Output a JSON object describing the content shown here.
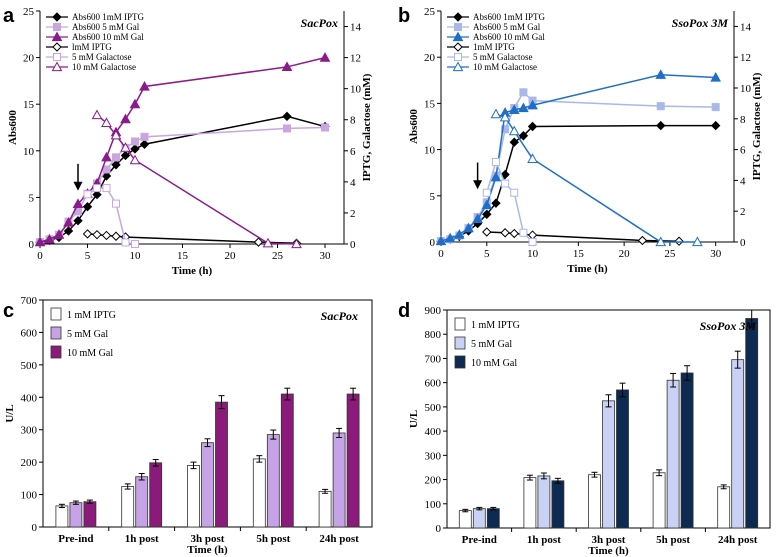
{
  "panels": {
    "a": {
      "letter": "a"
    },
    "b": {
      "letter": "b"
    },
    "c": {
      "letter": "c"
    },
    "d": {
      "letter": "d"
    }
  },
  "chart_data": [
    {
      "panel": "a",
      "type": "line",
      "title": "SacPox",
      "xlabel": "Time (h)",
      "ylabel": "Abs600",
      "ylabel2": "IPTG, Galactose (mM)",
      "xlim": [
        0,
        32
      ],
      "ylim": [
        0,
        25
      ],
      "ylim2": [
        0,
        15
      ],
      "xticks": [
        0,
        5,
        10,
        15,
        20,
        25,
        30
      ],
      "yticks": [
        0,
        5,
        10,
        15,
        20,
        25
      ],
      "yticks2": [
        0,
        2,
        4,
        6,
        8,
        10,
        12,
        14
      ],
      "induction_time": 4,
      "series": [
        {
          "name": "Abs600 1mM IPTG",
          "axis": "left",
          "marker": "diamond",
          "fill": "filled",
          "color": "#000000",
          "x": [
            0,
            1,
            2,
            3,
            4,
            5,
            6,
            7,
            8,
            9,
            10,
            11,
            26,
            30
          ],
          "y": [
            0.2,
            0.4,
            0.7,
            1.4,
            2.5,
            4.0,
            5.3,
            7.3,
            8.5,
            9.5,
            10.2,
            10.7,
            13.7,
            12.6
          ]
        },
        {
          "name": "Abs600 5 mM Gal",
          "axis": "left",
          "marker": "square",
          "fill": "filled",
          "color": "#c9a6e0",
          "x": [
            0,
            1,
            2,
            3,
            4,
            5,
            6,
            7,
            8,
            9,
            10,
            11,
            26,
            30
          ],
          "y": [
            0.2,
            0.5,
            1.0,
            2.4,
            3.5,
            5.4,
            6.5,
            8.0,
            9.3,
            10.3,
            11.0,
            11.5,
            12.4,
            12.5
          ]
        },
        {
          "name": "Abs600 10 mM Gal",
          "axis": "left",
          "marker": "triangle",
          "fill": "filled",
          "color": "#8b1a8b",
          "x": [
            0,
            1,
            2,
            3,
            4,
            5,
            6,
            7,
            8,
            9,
            10,
            11,
            26,
            30
          ],
          "y": [
            0.2,
            0.5,
            1.0,
            2.3,
            4.3,
            5.4,
            6.5,
            9.3,
            12.0,
            13.4,
            15.0,
            16.9,
            19.0,
            20.0
          ]
        },
        {
          "name": "lmM IPTG",
          "axis": "right",
          "marker": "diamond",
          "fill": "open",
          "color": "#000000",
          "x": [
            5,
            6,
            7,
            8,
            9,
            23,
            27
          ],
          "y": [
            0.65,
            0.6,
            0.55,
            0.5,
            0.45,
            0.12,
            0.05
          ]
        },
        {
          "name": "5 mM Galactose",
          "axis": "right",
          "marker": "square",
          "fill": "open",
          "color": "#c9a6e0",
          "x": [
            5,
            6,
            7,
            8,
            9,
            10
          ],
          "y": [
            3.2,
            3.6,
            3.6,
            2.6,
            0.1,
            0.0
          ]
        },
        {
          "name": "10 mM Galactose",
          "axis": "right",
          "marker": "triangle",
          "fill": "open",
          "color": "#8b1a8b",
          "x": [
            6,
            7,
            8,
            9,
            10,
            24,
            27
          ],
          "y": [
            8.3,
            7.8,
            7.0,
            6.2,
            5.4,
            0.05,
            0.0
          ]
        }
      ]
    },
    {
      "panel": "b",
      "type": "line",
      "title": "SsoPox 3M",
      "xlabel": "Time (h)",
      "ylabel": "Abs600",
      "ylabel2": "IPTG, Galactose (mM)",
      "xlim": [
        0,
        32
      ],
      "ylim": [
        0,
        25
      ],
      "ylim2": [
        0,
        15
      ],
      "xticks": [
        0,
        5,
        10,
        15,
        20,
        25,
        30
      ],
      "yticks": [
        0,
        5,
        10,
        15,
        20,
        25
      ],
      "yticks2": [
        0,
        2,
        4,
        6,
        8,
        10,
        12,
        14
      ],
      "induction_time": 4,
      "series": [
        {
          "name": "Abs600 1mM IPTG",
          "axis": "left",
          "marker": "diamond",
          "fill": "filled",
          "color": "#000000",
          "x": [
            0,
            1,
            2,
            3,
            4,
            5,
            6,
            7,
            8,
            9,
            10,
            24,
            30
          ],
          "y": [
            0.1,
            0.3,
            0.6,
            1.2,
            2.0,
            3.0,
            4.2,
            7.3,
            10.8,
            11.5,
            12.5,
            12.6,
            12.6
          ]
        },
        {
          "name": "Abs600 5 mM Gal",
          "axis": "left",
          "marker": "square",
          "fill": "filled",
          "color": "#a9b8e8",
          "x": [
            0,
            1,
            2,
            3,
            4,
            5,
            6,
            7,
            8,
            9,
            10,
            24,
            30
          ],
          "y": [
            0.1,
            0.3,
            0.7,
            1.5,
            2.7,
            4.3,
            7.2,
            12.2,
            14.5,
            16.2,
            15.3,
            14.7,
            14.6
          ]
        },
        {
          "name": "Abs600 10 mM Gal",
          "axis": "left",
          "marker": "triangle",
          "fill": "filled",
          "color": "#1f6fc9",
          "x": [
            0,
            1,
            2,
            3,
            4,
            5,
            6,
            7,
            8,
            9,
            10,
            24,
            30
          ],
          "y": [
            0.1,
            0.4,
            0.8,
            1.5,
            2.5,
            4.0,
            7.0,
            14.0,
            14.3,
            14.5,
            14.8,
            18.1,
            17.8
          ]
        },
        {
          "name": "1mM IPTG",
          "axis": "right",
          "marker": "diamond",
          "fill": "open",
          "color": "#000000",
          "x": [
            5,
            7,
            8,
            10,
            22,
            26
          ],
          "y": [
            0.65,
            0.6,
            0.55,
            0.45,
            0.1,
            0.05
          ]
        },
        {
          "name": "5 mM Galactose",
          "axis": "right",
          "marker": "square",
          "fill": "open",
          "color": "#a9b8e8",
          "x": [
            5,
            6,
            7,
            8,
            9,
            10
          ],
          "y": [
            3.2,
            5.2,
            3.8,
            3.2,
            0.6,
            0.0
          ]
        },
        {
          "name": "10 mM Galactose",
          "axis": "right",
          "marker": "triangle",
          "fill": "open",
          "color": "#1f6fc9",
          "x": [
            6,
            7,
            8,
            10,
            24,
            28
          ],
          "y": [
            8.3,
            8.1,
            7.2,
            5.4,
            0.0,
            0.0
          ]
        }
      ]
    },
    {
      "panel": "c",
      "type": "bar",
      "title": "SacPox",
      "xlabel": "Time (h)",
      "ylabel": "U/L",
      "ylim": [
        0,
        700
      ],
      "yticks": [
        0,
        100,
        200,
        300,
        400,
        500,
        600,
        700
      ],
      "categories": [
        "Pre-ind",
        "1h post",
        "3h post",
        "5h post",
        "24h post"
      ],
      "series": [
        {
          "name": "1 mM IPTG",
          "color": "#ffffff",
          "values": [
            65,
            125,
            190,
            210,
            110
          ],
          "errors": [
            5,
            8,
            10,
            10,
            6
          ]
        },
        {
          "name": "5 mM Gal",
          "color": "#c6a2e6",
          "values": [
            75,
            155,
            260,
            285,
            290
          ],
          "errors": [
            5,
            10,
            12,
            14,
            14
          ]
        },
        {
          "name": "10 mM Gal",
          "color": "#8b1a7a",
          "values": [
            78,
            198,
            385,
            410,
            410
          ],
          "errors": [
            5,
            10,
            20,
            18,
            18
          ]
        }
      ]
    },
    {
      "panel": "d",
      "type": "bar",
      "title": "SsoPox 3M",
      "xlabel": "Time (h)",
      "ylabel": "U/L",
      "ylim": [
        0,
        900
      ],
      "yticks": [
        0,
        100,
        200,
        300,
        400,
        500,
        600,
        700,
        800,
        900
      ],
      "categories": [
        "Pre-ind",
        "1h post",
        "3h post",
        "5h post",
        "24h post"
      ],
      "series": [
        {
          "name": "1 mM IPTG",
          "color": "#ffffff",
          "values": [
            72,
            208,
            220,
            228,
            170
          ],
          "errors": [
            5,
            10,
            10,
            12,
            8
          ]
        },
        {
          "name": "5 mM Gal",
          "color": "#c9d2f4",
          "values": [
            80,
            215,
            525,
            610,
            695
          ],
          "errors": [
            5,
            12,
            25,
            28,
            35
          ]
        },
        {
          "name": "10 mM Gal",
          "color": "#0c2a52",
          "values": [
            80,
            195,
            570,
            640,
            865
          ],
          "errors": [
            5,
            10,
            28,
            30,
            35
          ]
        }
      ]
    }
  ]
}
